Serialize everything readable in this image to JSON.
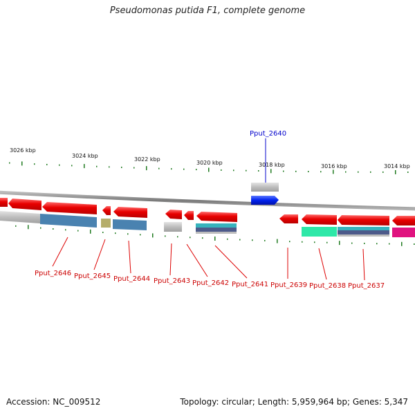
{
  "title": "Pseudomonas putida F1, complete genome",
  "accession": "Accession: NC_009512",
  "topology": "Topology: circular; Length: 5,959,964 bp; Genes: 5,347",
  "scale_labels": [
    "3026 kbp",
    "3024 kbp",
    "3022 kbp",
    "3020 kbp",
    "3018 kbp",
    "3016 kbp",
    "3014 kbp"
  ],
  "genes": [
    {
      "name": "Pput_2646",
      "color": "#cc0000"
    },
    {
      "name": "Pput_2645",
      "color": "#cc0000"
    },
    {
      "name": "Pput_2644",
      "color": "#cc0000"
    },
    {
      "name": "Pput_2643",
      "color": "#cc0000"
    },
    {
      "name": "Pput_2642",
      "color": "#cc0000"
    },
    {
      "name": "Pput_2641",
      "color": "#cc0000"
    },
    {
      "name": "Pput_2640",
      "color": "#0000cc"
    },
    {
      "name": "Pput_2639",
      "color": "#cc0000"
    },
    {
      "name": "Pput_2638",
      "color": "#cc0000"
    },
    {
      "name": "Pput_2637",
      "color": "#cc0000"
    }
  ],
  "colors": {
    "cds": "#e80000",
    "cds_forward": "#0022ee",
    "backbone": "#8c8c8c",
    "cog_gray": "#bdbdbd",
    "cog_blue": "#4a82b0",
    "cog_olive": "#b5ad6a",
    "cog_teal": "#37b3bd",
    "cog_navy": "#4d5a8a",
    "cog_green": "#2ee8a8",
    "cog_magenta": "#e0137f",
    "tick": "#1f7a1f"
  }
}
